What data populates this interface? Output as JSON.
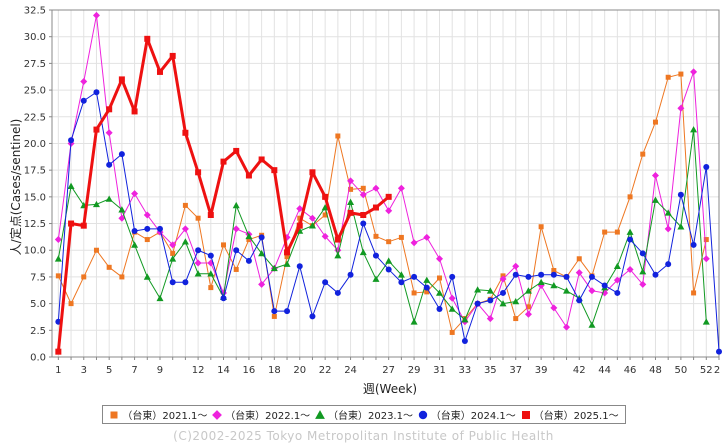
{
  "chart_data": {
    "type": "line",
    "ylabel": "人/定点(Cases/sentinel)",
    "xlabel": "週(Week)",
    "ylim": [
      0,
      32.5
    ],
    "xlim": [
      0.5,
      53
    ],
    "y_ticks": [
      "0.0",
      "2.5",
      "5.0",
      "7.5",
      "10.0",
      "12.5",
      "15.0",
      "17.5",
      "20.0",
      "22.5",
      "25.0",
      "27.5",
      "30.0",
      "32.5"
    ],
    "x_ticks": [
      "1",
      "3",
      "5",
      "7",
      "9",
      "12",
      "14",
      "16",
      "18",
      "20",
      "22",
      "24",
      "27",
      "29",
      "31",
      "33",
      "35",
      "37",
      "39",
      "42",
      "44",
      "46",
      "48",
      "50",
      "52",
      "2"
    ],
    "grid": true,
    "legend_position": "bottom",
    "series": [
      {
        "name": "（台東）2021.1～",
        "color": "#ee7722",
        "marker": "square",
        "x": [
          1,
          2,
          3,
          4,
          5,
          6,
          7,
          8,
          9,
          10,
          11,
          12,
          13,
          14,
          15,
          16,
          17,
          18,
          19,
          20,
          21,
          22,
          23,
          24,
          25,
          26,
          27,
          28,
          29,
          30,
          31,
          32,
          33,
          34,
          35,
          36,
          37,
          38,
          39,
          40,
          41,
          42,
          43,
          44,
          45,
          46,
          47,
          48,
          49,
          50,
          51,
          52
        ],
        "values": [
          7.6,
          5.0,
          7.5,
          10.0,
          8.4,
          7.5,
          11.7,
          11.0,
          11.7,
          9.7,
          14.2,
          13.0,
          6.5,
          10.5,
          8.2,
          11.0,
          11.4,
          3.8,
          9.4,
          13.0,
          12.3,
          13.3,
          20.7,
          15.7,
          15.8,
          11.3,
          10.8,
          11.2,
          6.0,
          6.1,
          7.4,
          2.3,
          3.6,
          5.0,
          5.4,
          7.6,
          3.6,
          4.7,
          12.2,
          8.1,
          7.5,
          9.2,
          7.6,
          11.7,
          11.7,
          15.0,
          19.0,
          22.0,
          26.2,
          26.5,
          6.0,
          11.0
        ]
      },
      {
        "name": "（台東）2022.1～",
        "color": "#ee22dd",
        "marker": "diamond",
        "x": [
          1,
          2,
          3,
          4,
          5,
          6,
          7,
          8,
          9,
          10,
          11,
          12,
          13,
          14,
          15,
          16,
          17,
          18,
          19,
          20,
          21,
          22,
          23,
          24,
          25,
          26,
          27,
          28,
          29,
          30,
          31,
          32,
          33,
          34,
          35,
          36,
          37,
          38,
          39,
          40,
          41,
          42,
          43,
          44,
          45,
          46,
          47,
          48,
          49,
          50,
          51,
          52
        ],
        "values": [
          11.0,
          20.0,
          25.8,
          32.0,
          21.0,
          13.0,
          15.3,
          13.3,
          11.7,
          10.5,
          12.0,
          8.8,
          8.8,
          6.0,
          12.0,
          11.5,
          6.8,
          8.3,
          11.2,
          13.9,
          13.0,
          11.3,
          10.0,
          16.5,
          15.2,
          15.8,
          13.7,
          15.8,
          10.7,
          11.2,
          9.2,
          5.5,
          3.3,
          5.0,
          3.6,
          7.3,
          8.5,
          4.0,
          6.7,
          4.6,
          2.8,
          7.9,
          6.2,
          6.0,
          7.2,
          8.2,
          6.8,
          17.0,
          12.0,
          23.3,
          26.7,
          9.2
        ]
      },
      {
        "name": "（台東）2023.1～",
        "color": "#119922",
        "marker": "triangle",
        "x": [
          1,
          2,
          3,
          4,
          5,
          6,
          7,
          8,
          9,
          10,
          11,
          12,
          13,
          14,
          15,
          16,
          17,
          18,
          19,
          20,
          21,
          22,
          23,
          24,
          25,
          26,
          27,
          28,
          29,
          30,
          31,
          32,
          33,
          34,
          35,
          36,
          37,
          38,
          39,
          40,
          41,
          42,
          43,
          44,
          45,
          46,
          47,
          48,
          49,
          50,
          51,
          52
        ],
        "values": [
          9.2,
          16.0,
          14.2,
          14.3,
          14.8,
          13.8,
          10.5,
          7.5,
          5.5,
          9.2,
          10.8,
          7.8,
          7.8,
          5.6,
          14.2,
          11.3,
          9.7,
          8.3,
          8.7,
          11.8,
          12.3,
          14.0,
          9.5,
          14.5,
          9.8,
          7.3,
          9.0,
          7.7,
          3.3,
          7.2,
          6.0,
          4.5,
          3.5,
          6.3,
          6.2,
          5.0,
          5.2,
          6.2,
          7.0,
          6.7,
          6.2,
          5.5,
          3.0,
          6.5,
          8.5,
          11.7,
          8.0,
          14.7,
          13.5,
          12.2,
          21.3,
          3.3
        ]
      },
      {
        "name": "（台東）2024.1～",
        "color": "#1122dd",
        "marker": "circle",
        "x": [
          1,
          2,
          3,
          4,
          5,
          6,
          7,
          8,
          9,
          10,
          11,
          12,
          13,
          14,
          15,
          16,
          17,
          18,
          19,
          20,
          21,
          22,
          23,
          24,
          25,
          26,
          27,
          28,
          29,
          30,
          31,
          32,
          33,
          34,
          35,
          36,
          37,
          38,
          39,
          40,
          41,
          42,
          43,
          44,
          45,
          46,
          47,
          48,
          49,
          50,
          51,
          52,
          53
        ],
        "values": [
          3.3,
          20.3,
          24.0,
          24.8,
          18.0,
          19.0,
          11.8,
          12.0,
          12.0,
          7.0,
          7.0,
          10.0,
          9.5,
          5.5,
          10.0,
          9.0,
          11.2,
          4.3,
          4.3,
          8.5,
          3.8,
          7.0,
          6.0,
          7.7,
          12.5,
          9.5,
          8.2,
          7.0,
          7.5,
          6.5,
          4.5,
          7.5,
          1.5,
          5.0,
          5.3,
          6.0,
          7.7,
          7.5,
          7.7,
          7.7,
          7.5,
          5.3,
          7.5,
          6.7,
          6.0,
          11.0,
          9.7,
          7.7,
          8.7,
          15.2,
          10.5,
          17.8,
          0.5
        ]
      },
      {
        "name": "（台東）2025.1～",
        "color": "#ee1111",
        "marker": "square",
        "x": [
          1,
          2,
          3,
          4,
          5,
          6,
          7,
          8,
          9,
          10,
          11,
          12,
          13,
          14,
          15,
          16,
          17,
          18,
          19,
          20,
          21,
          22,
          23,
          24,
          25,
          26,
          27
        ],
        "values": [
          0.5,
          12.5,
          12.3,
          21.3,
          23.2,
          26.0,
          23.0,
          29.8,
          26.7,
          28.2,
          21.0,
          17.3,
          13.3,
          18.3,
          19.3,
          17.0,
          18.5,
          17.5,
          9.8,
          12.3,
          17.3,
          15.0,
          11.0,
          13.5,
          13.3,
          14.0,
          15.0
        ]
      }
    ]
  },
  "copyright": "(C)2002-2025 Tokyo Metropolitan Institute of Public Health"
}
